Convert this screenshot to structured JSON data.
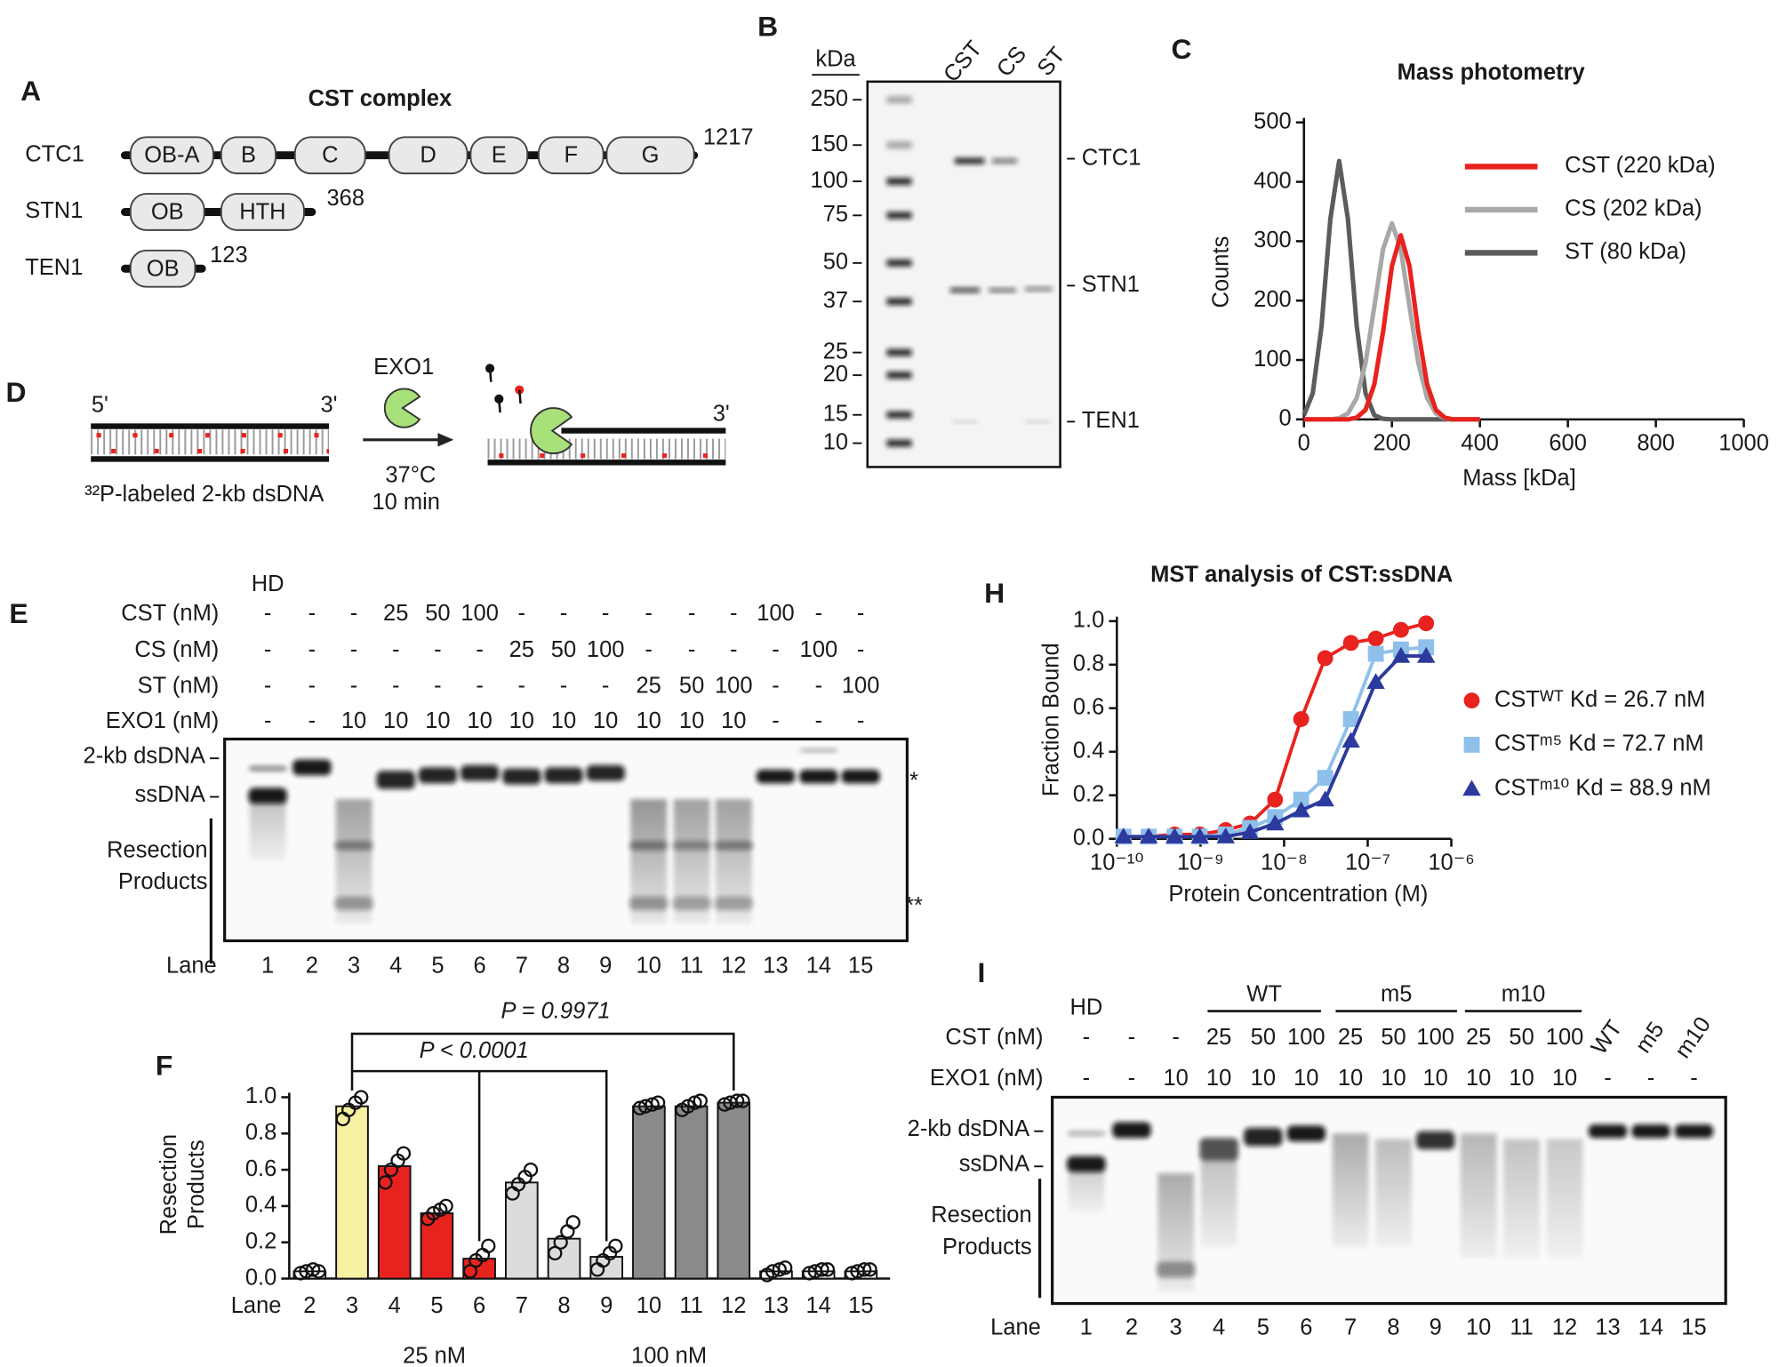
{
  "panel_labels": [
    "A",
    "B",
    "C",
    "D",
    "E",
    "F",
    "H",
    "I"
  ],
  "panel_a": {
    "title": "CST complex",
    "proteins": [
      {
        "name": "CTC1",
        "domains": [
          "OB-A",
          "B",
          "C",
          "D",
          "E",
          "F",
          "G"
        ],
        "length": 1217
      },
      {
        "name": "STN1",
        "domains": [
          "OB",
          "HTH"
        ],
        "length": 368
      },
      {
        "name": "TEN1",
        "domains": [
          "OB"
        ],
        "length": 123
      }
    ]
  },
  "panel_b": {
    "unit": "kDa",
    "lanes": [
      "CST",
      "CS",
      "ST"
    ],
    "markers": [
      250,
      150,
      100,
      75,
      50,
      37,
      25,
      20,
      15,
      10
    ],
    "bands": [
      "CTC1",
      "STN1",
      "TEN1"
    ]
  },
  "panel_d": {
    "enzyme": "EXO1",
    "ends": [
      "5'",
      "3'",
      "3'"
    ],
    "temperature": "37°C",
    "time": "10 min",
    "substrate": "³²P-labeled 2-kb dsDNA"
  },
  "panel_e": {
    "header": "HD",
    "rows": [
      {
        "label": "CST (nM)",
        "cells": [
          "-",
          "-",
          "-",
          "25",
          "50",
          "100",
          "-",
          "-",
          "-",
          "-",
          "-",
          "-",
          "100",
          "-",
          "-"
        ]
      },
      {
        "label": "CS (nM)",
        "cells": [
          "-",
          "-",
          "-",
          "-",
          "-",
          "-",
          "25",
          "50",
          "100",
          "-",
          "-",
          "-",
          "-",
          "100",
          "-"
        ]
      },
      {
        "label": "ST (nM)",
        "cells": [
          "-",
          "-",
          "-",
          "-",
          "-",
          "-",
          "-",
          "-",
          "-",
          "25",
          "50",
          "100",
          "-",
          "-",
          "100"
        ]
      },
      {
        "label": "EXO1 (nM)",
        "cells": [
          "-",
          "-",
          "10",
          "10",
          "10",
          "10",
          "10",
          "10",
          "10",
          "10",
          "10",
          "10",
          "-",
          "-",
          "-"
        ]
      }
    ],
    "band_labels": [
      "2-kb dsDNA",
      "ssDNA"
    ],
    "products": [
      "Resection",
      "Products"
    ],
    "markers": [
      "*",
      "**"
    ],
    "lane_label": "Lane",
    "lanes": [
      1,
      2,
      3,
      4,
      5,
      6,
      7,
      8,
      9,
      10,
      11,
      12,
      13,
      14,
      15
    ]
  },
  "panel_i": {
    "header": "HD",
    "groups": [
      "WT",
      "m5",
      "m10"
    ],
    "rows": [
      {
        "label": "CST (nM)",
        "cells": [
          "-",
          "-",
          "-",
          "25",
          "50",
          "100",
          "25",
          "50",
          "100",
          "25",
          "50",
          "100",
          "WT",
          "m5",
          "m10"
        ]
      },
      {
        "label": "EXO1 (nM)",
        "cells": [
          "-",
          "-",
          "10",
          "10",
          "10",
          "10",
          "10",
          "10",
          "10",
          "10",
          "10",
          "10",
          "-",
          "-",
          "-"
        ]
      }
    ],
    "band_labels": [
      "2-kb dsDNA",
      "ssDNA"
    ],
    "products": [
      "Resection",
      "Products"
    ],
    "lane_label": "Lane",
    "lanes": [
      1,
      2,
      3,
      4,
      5,
      6,
      7,
      8,
      9,
      10,
      11,
      12,
      13,
      14,
      15
    ]
  },
  "chart_data": [
    {
      "type": "line",
      "title": "Mass photometry",
      "x_label": "Mass [kDa]",
      "y_label": "Counts",
      "x": [
        0,
        20,
        40,
        60,
        80,
        100,
        120,
        140,
        160,
        180,
        200,
        220,
        240,
        260,
        280,
        300,
        320,
        340,
        360,
        380,
        400
      ],
      "xlim": [
        0,
        1000
      ],
      "xticks": [
        0,
        200,
        400,
        600,
        800,
        1000
      ],
      "ylim": [
        0,
        500
      ],
      "yticks": [
        0,
        100,
        200,
        300,
        400,
        500
      ],
      "legend": "upper right",
      "series": [
        {
          "name": "CST (220 kDa)",
          "color": "#e8231f",
          "values": [
            0,
            0,
            0,
            0,
            0,
            0,
            3,
            16,
            59,
            148,
            258,
            310,
            258,
            148,
            59,
            16,
            3,
            0,
            0,
            0,
            0
          ]
        },
        {
          "name": "CS (202 kDa)",
          "color": "#a8a8a8",
          "values": [
            0,
            0,
            0,
            0,
            2,
            10,
            36,
            95,
            190,
            287,
            330,
            287,
            190,
            95,
            36,
            10,
            2,
            0,
            0,
            0,
            0
          ]
        },
        {
          "name": "ST (80 kDa)",
          "color": "#5c5c5c",
          "values": [
            7,
            44,
            157,
            337,
            435,
            337,
            157,
            44,
            7,
            1,
            0,
            0,
            0,
            0,
            0,
            0,
            0,
            0,
            0,
            0,
            0
          ]
        }
      ]
    },
    {
      "type": "bar",
      "y_label": [
        "Resection",
        "Products"
      ],
      "x_label": "Lane",
      "categories": [
        "2",
        "3",
        "4",
        "5",
        "6",
        "7",
        "8",
        "9",
        "10",
        "11",
        "12",
        "13",
        "14",
        "15"
      ],
      "values": [
        0.04,
        0.95,
        0.62,
        0.36,
        0.11,
        0.53,
        0.22,
        0.12,
        0.95,
        0.95,
        0.97,
        0.04,
        0.04,
        0.04
      ],
      "colors": [
        "#ffffff",
        "#f7f2a1",
        "#e8231f",
        "#e8231f",
        "#e8231f",
        "#dcdcdc",
        "#dcdcdc",
        "#dcdcdc",
        "#8a8a8a",
        "#8a8a8a",
        "#8a8a8a",
        "#ffffff",
        "#ffffff",
        "#ffffff"
      ],
      "points": [
        [
          0.03,
          0.04,
          0.05,
          0.04
        ],
        [
          0.88,
          0.93,
          0.97,
          1.0
        ],
        [
          0.53,
          0.6,
          0.65,
          0.69
        ],
        [
          0.33,
          0.36,
          0.38,
          0.4
        ],
        [
          0.04,
          0.1,
          0.13,
          0.18
        ],
        [
          0.47,
          0.52,
          0.56,
          0.6
        ],
        [
          0.14,
          0.2,
          0.26,
          0.31
        ],
        [
          0.05,
          0.1,
          0.14,
          0.18
        ],
        [
          0.94,
          0.95,
          0.96,
          0.97
        ],
        [
          0.93,
          0.95,
          0.97,
          0.98
        ],
        [
          0.96,
          0.97,
          0.98,
          0.98
        ],
        [
          0.02,
          0.04,
          0.05,
          0.06
        ],
        [
          0.03,
          0.04,
          0.05,
          0.05
        ],
        [
          0.03,
          0.04,
          0.05,
          0.05
        ]
      ],
      "ylim": [
        0,
        1
      ],
      "yticks": [
        {
          "value": 0,
          "label": "0.0"
        },
        0.2,
        0.4,
        0.6,
        0.8,
        {
          "value": 1,
          "label": "1.0"
        }
      ],
      "annotations": [
        "P = 0.9971",
        "P < 0.0001"
      ],
      "group_labels": [
        "25 nM",
        "100 nM"
      ]
    },
    {
      "type": "scatter",
      "title": "MST analysis of CST:ssDNA",
      "x_label": "Protein Concentration (M)",
      "y_label": "Fraction Bound",
      "x_scale": "log",
      "xlim": [
        1e-10,
        1e-06
      ],
      "xticks": [
        {
          "value": 1e-10,
          "label": "10⁻¹⁰"
        },
        {
          "value": 1e-09,
          "label": "10⁻⁹"
        },
        {
          "value": 1e-08,
          "label": "10⁻⁸"
        },
        {
          "value": 1e-07,
          "label": "10⁻⁷"
        },
        {
          "value": 1e-06,
          "label": "10⁻⁶"
        }
      ],
      "ylim": [
        0,
        1
      ],
      "yticks": [
        {
          "value": 0,
          "label": "0.0"
        },
        0.2,
        0.4,
        0.6,
        0.8,
        {
          "value": 1,
          "label": "1.0"
        }
      ],
      "legend": "right",
      "x": [
        1.2e-10,
        2.4e-10,
        4.9e-10,
        9.8e-10,
        2e-09,
        3.9e-09,
        7.8e-09,
        1.6e-08,
        3.1e-08,
        6.3e-08,
        1.25e-07,
        2.5e-07,
        5e-07
      ],
      "series": [
        {
          "name": "CSTᵂᵀ Kd = 26.7 nM",
          "color": "#e8231f",
          "marker": "circle",
          "values": [
            0.01,
            0.01,
            0.02,
            0.02,
            0.04,
            0.07,
            0.18,
            0.55,
            0.83,
            0.9,
            0.92,
            0.96,
            0.99
          ]
        },
        {
          "name": "CSTᵐ⁵ Kd = 72.7 nM",
          "color": "#8fc0ea",
          "marker": "square",
          "values": [
            0.01,
            0.01,
            0.01,
            0.01,
            0.02,
            0.05,
            0.1,
            0.18,
            0.28,
            0.55,
            0.85,
            0.87,
            0.88
          ]
        },
        {
          "name": "CSTᵐ¹⁰ Kd = 88.9 nM",
          "color": "#2b3a9c",
          "marker": "triangle",
          "values": [
            0.01,
            0.01,
            0.01,
            0.01,
            0.01,
            0.03,
            0.07,
            0.13,
            0.18,
            0.45,
            0.72,
            0.84,
            0.84
          ]
        }
      ]
    }
  ]
}
